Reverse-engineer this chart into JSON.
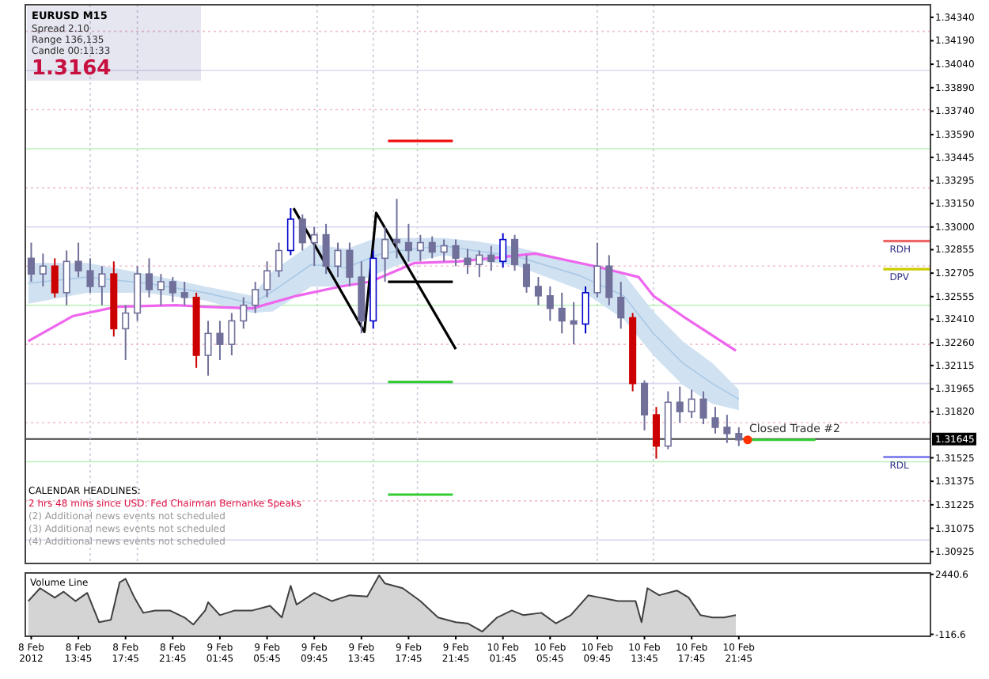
{
  "chart_data": [
    {
      "type": "candlestick",
      "xlim": [
        "2012-02-08T09:15",
        "2012-02-11T14:00"
      ],
      "ylim": [
        1.3085,
        1.3442
      ],
      "tick_labels": "y",
      "legend": false,
      "yticks": [
        {
          "value": 1.3434,
          "label": "1.34340"
        },
        {
          "value": 1.3419,
          "label": "1.34190"
        },
        {
          "value": 1.3404,
          "label": "1.34040"
        },
        {
          "value": 1.3389,
          "label": "1.33890"
        },
        {
          "value": 1.3374,
          "label": "1.33740"
        },
        {
          "value": 1.3359,
          "label": "1.33590"
        },
        {
          "value": 1.33445,
          "label": "1.33445"
        },
        {
          "value": 1.33295,
          "label": "1.33295"
        },
        {
          "value": 1.3315,
          "label": "1.33150"
        },
        {
          "value": 1.33,
          "label": "1.33000"
        },
        {
          "value": 1.32855,
          "label": "1.32855"
        },
        {
          "value": 1.32705,
          "label": "1.32705"
        },
        {
          "value": 1.32555,
          "label": "1.32555"
        },
        {
          "value": 1.3241,
          "label": "1.32410"
        },
        {
          "value": 1.3226,
          "label": "1.32260"
        },
        {
          "value": 1.32115,
          "label": "1.32115"
        },
        {
          "value": 1.31965,
          "label": "1.31965"
        },
        {
          "value": 1.3182,
          "label": "1.31820"
        },
        {
          "value": 1.31525,
          "label": "1.31525"
        },
        {
          "value": 1.31375,
          "label": "1.31375"
        },
        {
          "value": 1.31225,
          "label": "1.31225"
        },
        {
          "value": 1.31075,
          "label": "1.31075"
        },
        {
          "value": 1.30925,
          "label": "1.30925"
        }
      ],
      "x": [
        "2012-02-08T09:45",
        "2012-02-08T10:45",
        "2012-02-08T11:45",
        "2012-02-08T12:45",
        "2012-02-08T13:45",
        "2012-02-08T14:45",
        "2012-02-08T15:45",
        "2012-02-08T16:45",
        "2012-02-08T17:45",
        "2012-02-08T18:45",
        "2012-02-08T19:45",
        "2012-02-08T20:45",
        "2012-02-08T21:45",
        "2012-02-08T22:45",
        "2012-02-08T23:45",
        "2012-02-09T00:45",
        "2012-02-09T01:45",
        "2012-02-09T02:45",
        "2012-02-09T03:45",
        "2012-02-09T04:45",
        "2012-02-09T05:45",
        "2012-02-09T06:45",
        "2012-02-09T07:45",
        "2012-02-09T08:45",
        "2012-02-09T09:45",
        "2012-02-09T10:45",
        "2012-02-09T11:45",
        "2012-02-09T12:45",
        "2012-02-09T13:45",
        "2012-02-09T14:45",
        "2012-02-09T15:45",
        "2012-02-09T16:45",
        "2012-02-09T17:45",
        "2012-02-09T18:45",
        "2012-02-09T19:45",
        "2012-02-09T20:45",
        "2012-02-09T21:45",
        "2012-02-09T22:45",
        "2012-02-09T23:45",
        "2012-02-10T00:45",
        "2012-02-10T01:45",
        "2012-02-10T02:45",
        "2012-02-10T03:45",
        "2012-02-10T04:45",
        "2012-02-10T05:45",
        "2012-02-10T06:45",
        "2012-02-10T07:45",
        "2012-02-10T08:45",
        "2012-02-10T09:45",
        "2012-02-10T10:45",
        "2012-02-10T11:45",
        "2012-02-10T12:45",
        "2012-02-10T13:45",
        "2012-02-10T14:45",
        "2012-02-10T15:45",
        "2012-02-10T16:45",
        "2012-02-10T17:45",
        "2012-02-10T18:45",
        "2012-02-10T19:45",
        "2012-02-10T20:45",
        "2012-02-10T21:45"
      ],
      "ohlc": [
        [
          1.328,
          1.329,
          1.3265,
          1.327
        ],
        [
          1.327,
          1.3283,
          1.3262,
          1.3275
        ],
        [
          1.3275,
          1.328,
          1.3255,
          1.3258
        ],
        [
          1.3258,
          1.3285,
          1.325,
          1.3278
        ],
        [
          1.3278,
          1.329,
          1.3268,
          1.3272
        ],
        [
          1.3272,
          1.328,
          1.3258,
          1.3262
        ],
        [
          1.3262,
          1.3275,
          1.325,
          1.327
        ],
        [
          1.327,
          1.3278,
          1.323,
          1.3235
        ],
        [
          1.3235,
          1.325,
          1.3215,
          1.3245
        ],
        [
          1.3245,
          1.3275,
          1.324,
          1.327
        ],
        [
          1.327,
          1.328,
          1.3255,
          1.326
        ],
        [
          1.326,
          1.327,
          1.325,
          1.3265
        ],
        [
          1.3265,
          1.3268,
          1.3252,
          1.3258
        ],
        [
          1.3258,
          1.3265,
          1.325,
          1.3255
        ],
        [
          1.3255,
          1.3258,
          1.321,
          1.3218
        ],
        [
          1.3218,
          1.324,
          1.3205,
          1.3232
        ],
        [
          1.3232,
          1.324,
          1.3215,
          1.3225
        ],
        [
          1.3225,
          1.3245,
          1.3218,
          1.324
        ],
        [
          1.324,
          1.3255,
          1.3235,
          1.325
        ],
        [
          1.325,
          1.3265,
          1.3245,
          1.326
        ],
        [
          1.326,
          1.3278,
          1.3255,
          1.3272
        ],
        [
          1.3272,
          1.329,
          1.3268,
          1.3285
        ],
        [
          1.3285,
          1.3312,
          1.3282,
          1.3305
        ],
        [
          1.3305,
          1.3308,
          1.3285,
          1.329
        ],
        [
          1.329,
          1.33,
          1.3275,
          1.3295
        ],
        [
          1.3295,
          1.3302,
          1.327,
          1.3275
        ],
        [
          1.3275,
          1.329,
          1.3268,
          1.3285
        ],
        [
          1.3285,
          1.329,
          1.3262,
          1.3268
        ],
        [
          1.3268,
          1.3278,
          1.3232,
          1.324
        ],
        [
          1.324,
          1.3285,
          1.3235,
          1.328
        ],
        [
          1.328,
          1.33,
          1.3265,
          1.3292
        ],
        [
          1.3292,
          1.3318,
          1.328,
          1.329
        ],
        [
          1.329,
          1.3302,
          1.3278,
          1.3285
        ],
        [
          1.3285,
          1.3295,
          1.3278,
          1.329
        ],
        [
          1.329,
          1.3294,
          1.328,
          1.3284
        ],
        [
          1.3284,
          1.3292,
          1.3278,
          1.3288
        ],
        [
          1.3288,
          1.3292,
          1.3275,
          1.328
        ],
        [
          1.328,
          1.3286,
          1.327,
          1.3276
        ],
        [
          1.3276,
          1.3285,
          1.3268,
          1.3282
        ],
        [
          1.3282,
          1.3288,
          1.3272,
          1.3278
        ],
        [
          1.3278,
          1.3296,
          1.3274,
          1.3292
        ],
        [
          1.3292,
          1.3295,
          1.3272,
          1.3276
        ],
        [
          1.3276,
          1.3282,
          1.3258,
          1.3262
        ],
        [
          1.3262,
          1.3268,
          1.325,
          1.3256
        ],
        [
          1.3256,
          1.3262,
          1.324,
          1.3248
        ],
        [
          1.3248,
          1.3258,
          1.3232,
          1.324
        ],
        [
          1.324,
          1.3252,
          1.3225,
          1.3238
        ],
        [
          1.3238,
          1.3262,
          1.3232,
          1.3258
        ],
        [
          1.3258,
          1.329,
          1.3255,
          1.3275
        ],
        [
          1.3275,
          1.3282,
          1.325,
          1.3255
        ],
        [
          1.3255,
          1.3265,
          1.3235,
          1.3242
        ],
        [
          1.3242,
          1.3245,
          1.3195,
          1.32
        ],
        [
          1.32,
          1.3202,
          1.317,
          1.318
        ],
        [
          1.318,
          1.3185,
          1.3152,
          1.316
        ],
        [
          1.316,
          1.3195,
          1.3158,
          1.3188
        ],
        [
          1.3188,
          1.3198,
          1.3175,
          1.3182
        ],
        [
          1.3182,
          1.3196,
          1.3178,
          1.319
        ],
        [
          1.319,
          1.3195,
          1.3174,
          1.3178
        ],
        [
          1.3178,
          1.3185,
          1.3168,
          1.3172
        ],
        [
          1.3172,
          1.318,
          1.3162,
          1.3168
        ],
        [
          1.3168,
          1.3172,
          1.316,
          1.3164
        ]
      ],
      "colors": [
        "#70709a",
        "#70709a",
        "#cc0000",
        "#70709a",
        "#70709a",
        "#70709a",
        "#70709a",
        "#cc0000",
        "#70709a",
        "#70709a",
        "#70709a",
        "#70709a",
        "#70709a",
        "#70709a",
        "#cc0000",
        "#70709a",
        "#70709a",
        "#70709a",
        "#70709a",
        "#70709a",
        "#70709a",
        "#70709a",
        "#0000cc",
        "#70709a",
        "#70709a",
        "#70709a",
        "#70709a",
        "#70709a",
        "#70709a",
        "#0000cc",
        "#70709a",
        "#70709a",
        "#70709a",
        "#70709a",
        "#70709a",
        "#70709a",
        "#70709a",
        "#70709a",
        "#70709a",
        "#70709a",
        "#0000cc",
        "#70709a",
        "#70709a",
        "#70709a",
        "#70709a",
        "#70709a",
        "#70709a",
        "#0000cc",
        "#70709a",
        "#70709a",
        "#70709a",
        "#cc0000",
        "#70709a",
        "#cc0000",
        "#70709a",
        "#70709a",
        "#70709a",
        "#70709a",
        "#70709a",
        "#70709a",
        "#70709a"
      ],
      "series": [
        {
          "type": "line",
          "color": "#a9c9e6",
          "x": [
            "2012-02-08T09:30",
            "2012-02-08T14:30",
            "2012-02-08T19:30",
            "2012-02-09T00:30",
            "2012-02-09T04:30",
            "2012-02-09T06:15",
            "2012-02-09T09:30",
            "2012-02-09T12:30",
            "2012-02-09T15:00",
            "2012-02-09T17:00",
            "2012-02-09T20:45",
            "2012-02-09T23:15",
            "2012-02-10T03:00",
            "2012-02-10T08:15",
            "2012-02-10T12:00",
            "2012-02-10T14:30",
            "2012-02-10T17:00",
            "2012-02-10T19:30",
            "2012-02-10T21:45"
          ],
          "lower": [
            1.3251,
            1.3258,
            1.3258,
            1.3253,
            1.3245,
            1.3246,
            1.3262,
            1.3262,
            1.327,
            1.3276,
            1.3282,
            1.3279,
            1.3275,
            1.326,
            1.3241,
            1.3218,
            1.3199,
            1.3187,
            1.3183
          ],
          "values": [
            1.3264,
            1.3268,
            1.3264,
            1.3258,
            1.3251,
            1.3259,
            1.3276,
            1.3274,
            1.3282,
            1.3285,
            1.3288,
            1.3285,
            1.3281,
            1.3269,
            1.3256,
            1.3232,
            1.3213,
            1.32,
            1.319
          ],
          "upper": [
            1.3277,
            1.3277,
            1.327,
            1.3262,
            1.3256,
            1.3272,
            1.3289,
            1.3286,
            1.3293,
            1.3293,
            1.3293,
            1.3291,
            1.3287,
            1.3277,
            1.327,
            1.3246,
            1.3227,
            1.3213,
            1.3196
          ]
        },
        {
          "type": "line",
          "color": "#ee66ee",
          "x": [
            "2012-02-08T09:30",
            "2012-02-08T13:15",
            "2012-02-08T17:00",
            "2012-02-08T22:00",
            "2012-02-09T00:30",
            "2012-02-09T04:30",
            "2012-02-09T08:15",
            "2012-02-09T12:00",
            "2012-02-09T14:30",
            "2012-02-09T18:15",
            "2012-02-09T22:00",
            "2012-02-10T02:00",
            "2012-02-10T04:30",
            "2012-02-10T09:30",
            "2012-02-10T13:15",
            "2012-02-10T14:30",
            "2012-02-10T17:00",
            "2012-02-10T21:30"
          ],
          "values": [
            1.3227,
            1.3243,
            1.3249,
            1.325,
            1.3249,
            1.3248,
            1.3256,
            1.3262,
            1.3265,
            1.3277,
            1.3278,
            1.3281,
            1.3283,
            1.3275,
            1.3268,
            1.3256,
            1.3243,
            1.3221
          ]
        },
        {
          "type": "line",
          "color": "#000000",
          "x": [
            "2012-02-09T08:00",
            "2012-02-09T14:00",
            "2012-02-09T15:00",
            "2012-02-09T21:45"
          ],
          "values": [
            1.3312,
            1.3233,
            1.3309,
            1.3222
          ]
        },
        {
          "type": "line",
          "color": "#ee1111",
          "x": [
            "2012-02-09T16:00",
            "2012-02-09T21:30"
          ],
          "values": [
            1.3355,
            1.3355
          ]
        },
        {
          "type": "line",
          "color": "#000000",
          "x": [
            "2012-02-09T16:00",
            "2012-02-09T21:30"
          ],
          "values": [
            1.3265,
            1.3265
          ]
        },
        {
          "type": "line",
          "color": "#33cc33",
          "x": [
            "2012-02-09T16:00",
            "2012-02-09T21:30"
          ],
          "values": [
            1.3201,
            1.3201
          ]
        },
        {
          "type": "line",
          "color": "#33cc33",
          "x": [
            "2012-02-09T16:00",
            "2012-02-09T21:30"
          ],
          "values": [
            1.3129,
            1.3129
          ]
        },
        {
          "type": "line",
          "color": "#33cc33",
          "x": [
            "2012-02-10T22:45",
            "2012-02-11T04:15"
          ],
          "values": [
            1.3164,
            1.3164
          ]
        },
        {
          "type": "line",
          "name": "RDH",
          "color": "#ee6666",
          "x": [
            "2012-02-11T10:00",
            "2012-02-11T14:00"
          ],
          "values": [
            1.3291,
            1.3291
          ]
        },
        {
          "type": "line",
          "name": "DPV",
          "color": "#cccc00",
          "x": [
            "2012-02-11T10:00",
            "2012-02-11T14:00"
          ],
          "values": [
            1.3273,
            1.3273
          ]
        },
        {
          "type": "line",
          "name": "RDL",
          "color": "#8888ee",
          "x": [
            "2012-02-11T10:00",
            "2012-02-11T14:00"
          ],
          "values": [
            1.3153,
            1.3153
          ]
        }
      ],
      "ref_lines": [
        {
          "axis": "y",
          "value": 1.3425,
          "color": "#f0c0cc",
          "line_style": "dotted"
        },
        {
          "axis": "y",
          "value": 1.34,
          "color": "#d8d8f0",
          "line_style": "solid"
        },
        {
          "axis": "y",
          "value": 1.3375,
          "color": "#f0c0cc",
          "line_style": "dotted"
        },
        {
          "axis": "y",
          "value": 1.335,
          "color": "#b8f0b8",
          "line_style": "solid"
        },
        {
          "axis": "y",
          "value": 1.3325,
          "color": "#f0c0cc",
          "line_style": "dotted"
        },
        {
          "axis": "y",
          "value": 1.33,
          "color": "#d8d8f0",
          "line_style": "solid"
        },
        {
          "axis": "y",
          "value": 1.3275,
          "color": "#f0c0cc",
          "line_style": "dotted"
        },
        {
          "axis": "y",
          "value": 1.325,
          "color": "#b8f0b8",
          "line_style": "solid"
        },
        {
          "axis": "y",
          "value": 1.3225,
          "color": "#f0c0cc",
          "line_style": "dotted"
        },
        {
          "axis": "y",
          "value": 1.32,
          "color": "#d8d8f0",
          "line_style": "solid"
        },
        {
          "axis": "y",
          "value": 1.3175,
          "color": "#f0c0cc",
          "line_style": "dotted"
        },
        {
          "axis": "y",
          "value": 1.315,
          "color": "#b8f0b8",
          "line_style": "solid"
        },
        {
          "axis": "y",
          "value": 1.3125,
          "color": "#f0c0cc",
          "line_style": "dotted"
        },
        {
          "axis": "y",
          "value": 1.31,
          "color": "#d8d8f0",
          "line_style": "solid"
        },
        {
          "axis": "x",
          "value": "2012-02-08T14:45",
          "color": "#c8c8d8",
          "line_style": "dotted"
        },
        {
          "axis": "x",
          "value": "2012-02-08T18:45",
          "color": "#c8c8d8",
          "line_style": "dotted"
        },
        {
          "axis": "x",
          "value": "2012-02-09T10:00",
          "color": "#c8c8d8",
          "line_style": "dotted"
        },
        {
          "axis": "x",
          "value": "2012-02-09T14:45",
          "color": "#c8c8d8",
          "line_style": "dotted"
        },
        {
          "axis": "x",
          "value": "2012-02-09T18:30",
          "color": "#c8c8d8",
          "line_style": "dotted"
        },
        {
          "axis": "x",
          "value": "2012-02-10T09:45",
          "color": "#c8c8d8",
          "line_style": "dotted"
        },
        {
          "axis": "x",
          "value": "2012-02-10T14:30",
          "color": "#c8c8d8",
          "line_style": "dotted"
        },
        {
          "axis": "y",
          "value": 1.31645,
          "label": "1.31645",
          "color": "#404040",
          "line_style": "solid"
        }
      ],
      "annotations": [
        "EURUSD  M15",
        "Spread  2.10",
        "Range  136,135",
        "Candle  00:11:33",
        "1.3164",
        "CALENDAR HEADLINES:",
        "2 hrs 48 mins since USD: Fed Chairman Bernanke Speaks",
        "(2) Additional news events not scheduled",
        "(3) Additional news events not scheduled",
        "(4) Additional news events not scheduled",
        {
          "text": "Closed Trade #2",
          "x": "2012-02-10T22:30",
          "y": 1.3164
        }
      ]
    },
    {
      "type": "area",
      "title": "Volume Line",
      "xlim": [
        "2012-02-08T09:15",
        "2012-02-11T14:00"
      ],
      "ylim": [
        -200,
        2500
      ],
      "legend": false,
      "xticks": [
        {
          "value": "2012-02-08T09:45",
          "label": "8 Feb 2012"
        },
        {
          "value": "2012-02-08T13:45",
          "label": "8 Feb 13:45"
        },
        {
          "value": "2012-02-08T17:45",
          "label": "8 Feb 17:45"
        },
        {
          "value": "2012-02-08T21:45",
          "label": "8 Feb 21:45"
        },
        {
          "value": "2012-02-09T01:45",
          "label": "9 Feb 01:45"
        },
        {
          "value": "2012-02-09T05:45",
          "label": "9 Feb 05:45"
        },
        {
          "value": "2012-02-09T09:45",
          "label": "9 Feb 09:45"
        },
        {
          "value": "2012-02-09T13:45",
          "label": "9 Feb 13:45"
        },
        {
          "value": "2012-02-09T17:45",
          "label": "9 Feb 17:45"
        },
        {
          "value": "2012-02-09T21:45",
          "label": "9 Feb 21:45"
        },
        {
          "value": "2012-02-10T01:45",
          "label": "10 Feb 01:45"
        },
        {
          "value": "2012-02-10T05:45",
          "label": "10 Feb 05:45"
        },
        {
          "value": "2012-02-10T09:45",
          "label": "10 Feb 09:45"
        },
        {
          "value": "2012-02-10T13:45",
          "label": "10 Feb 13:45"
        },
        {
          "value": "2012-02-10T17:45",
          "label": "10 Feb 17:45"
        },
        {
          "value": "2012-02-10T21:45",
          "label": "10 Feb 21:45"
        }
      ],
      "yticks": [
        2440.6,
        -116.6
      ],
      "series": [
        {
          "color": "#404040",
          "x": [
            "2012-02-08T09:30",
            "2012-02-08T10:30",
            "2012-02-08T11:45",
            "2012-02-08T12:30",
            "2012-02-08T13:30",
            "2012-02-08T14:30",
            "2012-02-08T15:30",
            "2012-02-08T16:30",
            "2012-02-08T17:15",
            "2012-02-08T17:45",
            "2012-02-08T18:30",
            "2012-02-08T19:15",
            "2012-02-08T20:15",
            "2012-02-08T21:30",
            "2012-02-08T22:45",
            "2012-02-08T23:30",
            "2012-02-09T00:30",
            "2012-02-09T00:45",
            "2012-02-09T01:45",
            "2012-02-09T03:00",
            "2012-02-09T04:30",
            "2012-02-09T06:00",
            "2012-02-09T07:00",
            "2012-02-09T07:45",
            "2012-02-09T08:15",
            "2012-02-09T09:45",
            "2012-02-09T11:15",
            "2012-02-09T12:45",
            "2012-02-09T14:15",
            "2012-02-09T15:15",
            "2012-02-09T15:45",
            "2012-02-09T17:15",
            "2012-02-09T18:45",
            "2012-02-09T20:15",
            "2012-02-09T21:45",
            "2012-02-09T22:45",
            "2012-02-10T00:00",
            "2012-02-10T01:15",
            "2012-02-10T02:30",
            "2012-02-10T03:30",
            "2012-02-10T05:00",
            "2012-02-10T06:15",
            "2012-02-10T07:30",
            "2012-02-10T09:00",
            "2012-02-10T10:00",
            "2012-02-10T11:30",
            "2012-02-10T13:00",
            "2012-02-10T13:30",
            "2012-02-10T14:00",
            "2012-02-10T15:00",
            "2012-02-10T16:30",
            "2012-02-10T17:30",
            "2012-02-10T18:30",
            "2012-02-10T19:30",
            "2012-02-10T20:30",
            "2012-02-10T21:30"
          ],
          "values": [
            1300,
            1850,
            1450,
            1700,
            1300,
            1650,
            400,
            500,
            2100,
            2250,
            1450,
            800,
            900,
            900,
            600,
            300,
            900,
            1250,
            700,
            900,
            900,
            1100,
            600,
            1950,
            1150,
            1650,
            1300,
            1550,
            1500,
            2400,
            2050,
            1850,
            1300,
            600,
            400,
            350,
            0,
            600,
            900,
            700,
            800,
            350,
            700,
            1550,
            1450,
            1300,
            1300,
            400,
            1850,
            1550,
            1750,
            1450,
            700,
            600,
            600,
            700
          ]
        }
      ]
    }
  ]
}
